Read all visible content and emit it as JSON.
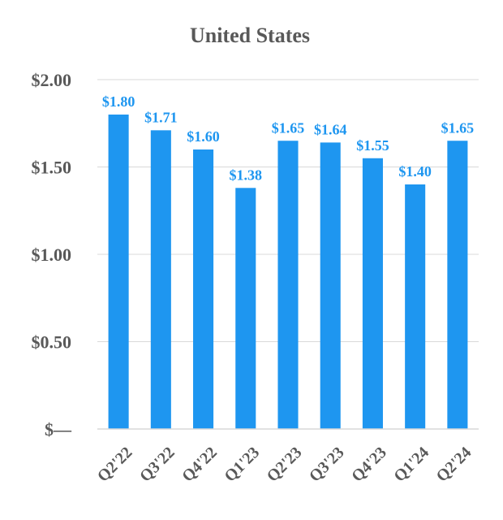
{
  "chart_data": {
    "type": "bar",
    "title": "United States",
    "categories": [
      "Q2'22",
      "Q3'22",
      "Q4'22",
      "Q1'23",
      "Q2'23",
      "Q3'23",
      "Q4'23",
      "Q1'24",
      "Q2'24"
    ],
    "values": [
      1.8,
      1.71,
      1.6,
      1.38,
      1.65,
      1.64,
      1.55,
      1.4,
      1.65
    ],
    "data_labels": [
      "$1.80",
      "$1.71",
      "$1.60",
      "$1.38",
      "$1.65",
      "$1.64",
      "$1.55",
      "$1.40",
      "$1.65"
    ],
    "yticks": [
      0,
      0.5,
      1.0,
      1.5,
      2.0
    ],
    "ytick_labels": [
      "$—",
      "$0.50",
      "$1.00",
      "$1.50",
      "$2.00"
    ],
    "ylim": [
      0,
      2.0
    ],
    "xlabel": "",
    "ylabel": "",
    "grid": true,
    "legend": "none",
    "bar_color": "#1e96f0",
    "label_color": "#1e96f0"
  }
}
